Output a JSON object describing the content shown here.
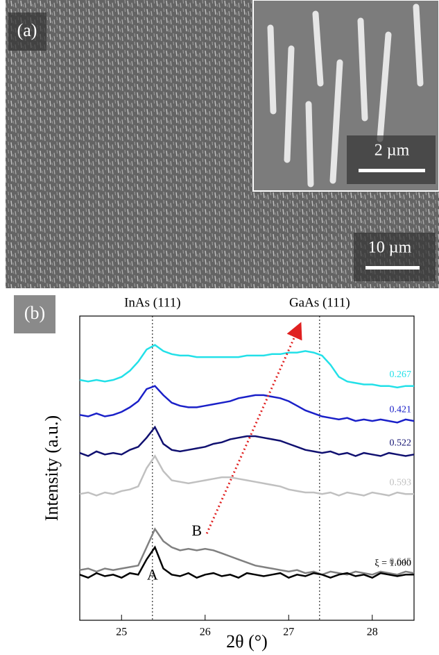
{
  "panel_a": {
    "label": "(a)",
    "inset_scale": "2 µm",
    "scale": "10 µm"
  },
  "panel_b_label": "(b)",
  "chart_data": {
    "type": "line",
    "x_label": "2θ (°)",
    "y_label": "Intensity (a.u.)",
    "x": [
      24.5,
      24.6,
      24.7,
      24.8,
      24.9,
      25.0,
      25.1,
      25.2,
      25.3,
      25.4,
      25.5,
      25.6,
      25.7,
      25.8,
      25.9,
      26.0,
      26.1,
      26.2,
      26.3,
      26.4,
      26.5,
      26.6,
      26.7,
      26.8,
      26.9,
      27.0,
      27.1,
      27.2,
      27.3,
      27.4,
      27.5,
      27.6,
      27.7,
      27.8,
      27.9,
      28.0,
      28.1,
      28.2,
      28.3,
      28.4,
      28.5
    ],
    "xlim": [
      24.5,
      28.5
    ],
    "xticks": [
      25,
      26,
      27,
      28
    ],
    "ylim": [
      0,
      100
    ],
    "series": [
      {
        "name": "0.267",
        "color": "#22e0e8",
        "values": [
          79,
          78.5,
          79,
          78.5,
          79,
          80,
          82,
          85,
          89,
          90.5,
          88.5,
          87.5,
          87,
          87,
          86.5,
          86.5,
          86.5,
          86.5,
          86.5,
          86.5,
          87,
          87,
          87,
          87.5,
          87.5,
          88,
          88,
          88.5,
          88,
          87,
          84,
          80,
          78.5,
          78,
          77.5,
          77.5,
          77,
          77,
          76.5,
          77,
          77
        ]
      },
      {
        "name": "0.421",
        "color": "#1a20c8",
        "values": [
          67.5,
          67,
          68,
          67,
          67.5,
          68.5,
          70,
          72,
          76,
          77,
          74,
          71.5,
          70.5,
          70,
          70,
          70.5,
          71,
          71.5,
          72,
          73,
          73.5,
          74,
          74,
          73.5,
          73,
          72,
          70.5,
          69,
          68,
          67,
          66.5,
          66,
          66.5,
          65.5,
          66,
          65.5,
          66,
          65.5,
          65,
          66,
          65.5
        ]
      },
      {
        "name": "0.522",
        "color": "#101070",
        "values": [
          55,
          54,
          55.5,
          54.5,
          55,
          54.5,
          56,
          57,
          60,
          63.5,
          58,
          56,
          55.5,
          56,
          56.5,
          57,
          58,
          58.5,
          59.5,
          60,
          60.5,
          60.5,
          60,
          59.5,
          59,
          58,
          57,
          56,
          55.5,
          55,
          55.5,
          54.5,
          55,
          54,
          55,
          54.5,
          54,
          55,
          54.5,
          54,
          54.5
        ]
      },
      {
        "name": "0.593",
        "color": "#c0c0c0",
        "values": [
          41.5,
          42,
          41,
          42,
          41.5,
          42.5,
          43,
          44,
          50,
          54,
          49,
          46,
          45.5,
          45,
          45.5,
          46,
          46.5,
          47,
          47,
          46.5,
          46,
          45.5,
          45,
          44.5,
          44,
          43,
          42.5,
          42,
          42,
          41.5,
          42,
          41,
          42,
          41.5,
          41,
          42,
          41.5,
          41,
          42,
          41.5,
          41.5
        ]
      },
      {
        "name": "0.645",
        "color": "#808080",
        "values": [
          16.5,
          17,
          16,
          17,
          16.5,
          17,
          17.5,
          18,
          24,
          30,
          26,
          24,
          23,
          23.5,
          23,
          23.5,
          23,
          22,
          21,
          20,
          19,
          18,
          17.5,
          17,
          16.5,
          16,
          16.5,
          15.5,
          16,
          15,
          16,
          15.5,
          15,
          16,
          15.5,
          15,
          16,
          15.5,
          15,
          16,
          15.5
        ]
      },
      {
        "name": "ξ = 1.000",
        "color": "#000000",
        "values": [
          15,
          14,
          15.5,
          14.5,
          15,
          14,
          15.5,
          15,
          20,
          24,
          17,
          15,
          14.5,
          15.5,
          14,
          15,
          15.5,
          14.5,
          15,
          14,
          15.5,
          15,
          14.5,
          15,
          15.5,
          14,
          15,
          14.5,
          15.5,
          15,
          14,
          15,
          15.5,
          14.5,
          15,
          14,
          15.5,
          15,
          14.5,
          15,
          15
        ]
      }
    ],
    "reference_lines": [
      {
        "text": "InAs (111)",
        "x": 25.37
      },
      {
        "text": "GaAs (111)",
        "x": 27.37
      }
    ],
    "peak_labels": [
      {
        "text": "A",
        "x": 25.37,
        "y": 14.5
      },
      {
        "text": "B",
        "x": 25.9,
        "y": 29
      }
    ],
    "arrow": {
      "from": [
        26.02,
        28.5
      ],
      "to": [
        27.13,
        96.8
      ],
      "color": "#e02020"
    }
  }
}
